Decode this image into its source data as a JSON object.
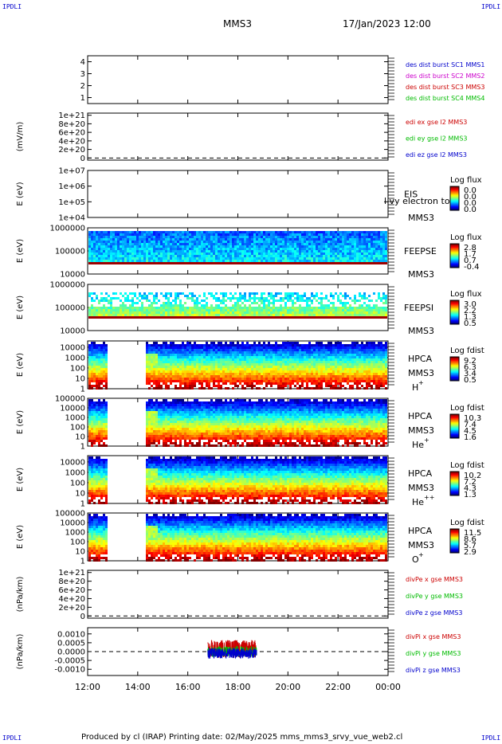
{
  "header": {
    "corner_tl": "IPDLI",
    "corner_tr": "IPDLI",
    "corner_bl": "IPDLI",
    "corner_br": "IPDLI",
    "spacecraft": "MMS3",
    "datetime": "17/Jan/2023 12:00"
  },
  "footer": {
    "text": "Produced by cl (IRAP)   Printing date: 02/May/2025   mms_mms3_srvy_vue_web2.cl"
  },
  "chart_data": {
    "type": "heatmap",
    "x_tick_labels": [
      "12:00",
      "14:00",
      "16:00",
      "18:00",
      "20:00",
      "22:00",
      "00:00"
    ],
    "x_hours": [
      12,
      14,
      16,
      18,
      20,
      22,
      24
    ],
    "xlim_hours": [
      12,
      24
    ],
    "panels": [
      {
        "id": "des-dist-burst",
        "type": "line",
        "ylabel": "",
        "ticks": [
          "4",
          "3",
          "2",
          "1"
        ],
        "tick_values": [
          4,
          3,
          2,
          1
        ],
        "ylim": [
          0.5,
          4.5
        ],
        "dashed_zero": false,
        "legend": [
          {
            "label": "des dist burst SC1 MMS1",
            "color": "#0000cc"
          },
          {
            "label": "des dist burst SC2 MMS2",
            "color": "#cc00cc"
          },
          {
            "label": "des dist burst SC3 MMS3",
            "color": "#cc0000"
          },
          {
            "label": "des dist burst SC4 MMS4",
            "color": "#00bb00"
          }
        ],
        "series": []
      },
      {
        "id": "edi-e-gse",
        "type": "line",
        "ylabel": "(mV/m)",
        "ticks": [
          "1e+21",
          "8e+20",
          "6e+20",
          "4e+20",
          "2e+20",
          "0"
        ],
        "tick_values": [
          1e+21,
          8e+20,
          6e+20,
          4e+20,
          2e+20,
          0
        ],
        "ylim": [
          -5e+19,
          1.05e+21
        ],
        "dashed_zero": true,
        "legend": [
          {
            "label": "edi ex gse l2 MMS3",
            "color": "#cc0000"
          },
          {
            "label": "edi ey gse l2 MMS3",
            "color": "#00bb00"
          },
          {
            "label": "edi ez gse l2 MMS3",
            "color": "#0000cc"
          }
        ],
        "series": []
      },
      {
        "id": "eis",
        "type": "heatmap",
        "ylabel": "E (eV)",
        "ticks": [
          "1e+07",
          "1e+06",
          "1e+05",
          "1e+04"
        ],
        "tick_values": [
          10000000.0,
          1000000.0,
          100000.0,
          10000.0
        ],
        "ylim": [
          10000.0,
          10000000.0
        ],
        "log": true,
        "right_label": [
          "EIS",
          "MMS3"
        ],
        "overlay_text": "l vy electron to",
        "colorbar": {
          "title": "Log flux",
          "values": [
            "0.0",
            "0.0",
            "0.0",
            "0.0"
          ]
        },
        "data": "empty"
      },
      {
        "id": "feeps-e",
        "type": "heatmap",
        "ylabel": "E (eV)",
        "ticks": [
          "1000000",
          "100000",
          "10000"
        ],
        "tick_values": [
          1000000.0,
          100000.0,
          10000.0
        ],
        "ylim": [
          10000.0,
          1000000.0
        ],
        "log": true,
        "right_label": [
          "FEEPSE",
          "MMS3"
        ],
        "colorbar": {
          "title": "Log flux",
          "values": [
            "2.8",
            "1.7",
            "0.7",
            "-0.4"
          ]
        },
        "coverage_hours": [
          12,
          24
        ]
      },
      {
        "id": "feeps-i",
        "type": "heatmap",
        "ylabel": "E (eV)",
        "ticks": [
          "1000000",
          "100000",
          "10000"
        ],
        "tick_values": [
          1000000.0,
          100000.0,
          10000.0
        ],
        "ylim": [
          10000.0,
          1000000.0
        ],
        "log": true,
        "right_label": [
          "FEEPSI",
          "MMS3"
        ],
        "colorbar": {
          "title": "Log flux",
          "values": [
            "3.0",
            "2.2",
            "1.3",
            "0.5"
          ]
        },
        "coverage_hours": [
          12,
          24
        ]
      },
      {
        "id": "hpca-h",
        "type": "heatmap",
        "ylabel": "E (eV)",
        "ticks": [
          "10000",
          "1000",
          "100",
          "10",
          "1"
        ],
        "tick_values": [
          10000.0,
          1000.0,
          100.0,
          10,
          1
        ],
        "ylim": [
          1,
          40000.0
        ],
        "log": true,
        "right_label": [
          "HPCA",
          "MMS3"
        ],
        "species": "H",
        "species_sup": "+",
        "colorbar": {
          "title": "Log fdist",
          "values": [
            "9.2",
            "6.3",
            "3.4",
            "0.5"
          ]
        },
        "gap_hours": [
          12.75,
          14.3
        ]
      },
      {
        "id": "hpca-he",
        "type": "heatmap",
        "ylabel": "E (eV)",
        "ticks": [
          "100000",
          "10000",
          "1000",
          "100",
          "10",
          "1"
        ],
        "tick_values": [
          100000.0,
          10000.0,
          1000.0,
          100.0,
          10,
          1
        ],
        "ylim": [
          1,
          100000.0
        ],
        "log": true,
        "right_label": [
          "HPCA",
          "MMS3"
        ],
        "species": "He",
        "species_sup": "+",
        "colorbar": {
          "title": "Log fdist",
          "values": [
            "10.3",
            "7.4",
            "4.5",
            "1.6"
          ]
        },
        "gap_hours": [
          12.75,
          14.3
        ]
      },
      {
        "id": "hpca-he2",
        "type": "heatmap",
        "ylabel": "E (eV)",
        "ticks": [
          "10000",
          "1000",
          "100",
          "10",
          "1"
        ],
        "tick_values": [
          10000.0,
          1000.0,
          100.0,
          10,
          1
        ],
        "ylim": [
          1,
          40000.0
        ],
        "log": true,
        "right_label": [
          "HPCA",
          "MMS3"
        ],
        "species": "He",
        "species_sup": "++",
        "colorbar": {
          "title": "Log fdist",
          "values": [
            "10.2",
            "7.2",
            "4.3",
            "1.3"
          ]
        },
        "gap_hours": [
          12.75,
          14.3
        ]
      },
      {
        "id": "hpca-o",
        "type": "heatmap",
        "ylabel": "E (eV)",
        "ticks": [
          "100000",
          "10000",
          "1000",
          "100",
          "10",
          "1"
        ],
        "tick_values": [
          100000.0,
          10000.0,
          1000.0,
          100.0,
          10,
          1
        ],
        "ylim": [
          1,
          100000.0
        ],
        "log": true,
        "right_label": [
          "HPCA",
          "MMS3"
        ],
        "species": "O",
        "species_sup": "+",
        "colorbar": {
          "title": "Log fdist",
          "values": [
            "11.5",
            "8.6",
            "5.7",
            "2.9"
          ]
        },
        "gap_hours": [
          12.75,
          14.3
        ]
      },
      {
        "id": "divpe",
        "type": "line",
        "ylabel": "(nPa/km)",
        "ticks": [
          "1e+21",
          "8e+20",
          "6e+20",
          "4e+20",
          "2e+20",
          "0"
        ],
        "tick_values": [
          1e+21,
          8e+20,
          6e+20,
          4e+20,
          2e+20,
          0
        ],
        "ylim": [
          -5e+19,
          1.05e+21
        ],
        "dashed_zero": true,
        "legend": [
          {
            "label": "divPe x gse MMS3",
            "color": "#cc0000"
          },
          {
            "label": "divPe y gse MMS3",
            "color": "#00bb00"
          },
          {
            "label": "divPe z gse MMS3",
            "color": "#0000cc"
          }
        ],
        "series": []
      },
      {
        "id": "divpi",
        "type": "line",
        "ylabel": "(nPa/km)",
        "ticks": [
          "0.0010",
          "0.0005",
          "0.0000",
          "-0.0005",
          "-0.0010"
        ],
        "tick_values": [
          0.001,
          0.0005,
          0,
          -0.0005,
          -0.001
        ],
        "ylim": [
          -0.00135,
          0.00135
        ],
        "dashed_zero": true,
        "legend": [
          {
            "label": "divPi x gse MMS3",
            "color": "#cc0000"
          },
          {
            "label": "divPi y gse MMS3",
            "color": "#00bb00"
          },
          {
            "label": "divPi z gse MMS3",
            "color": "#0000cc"
          }
        ],
        "series": [
          {
            "name": "divPi x gse MMS3",
            "color": "#cc0000",
            "x_range_hours": [
              16.8,
              18.75
            ],
            "amplitude": 0.0005
          },
          {
            "name": "divPi y gse MMS3",
            "color": "#00bb00",
            "x_range_hours": [
              16.8,
              18.75
            ],
            "amplitude": 0.0003
          },
          {
            "name": "divPi z gse MMS3",
            "color": "#0000cc",
            "x_range_hours": [
              16.8,
              18.75
            ],
            "amplitude": 0.0003
          }
        ]
      }
    ]
  }
}
